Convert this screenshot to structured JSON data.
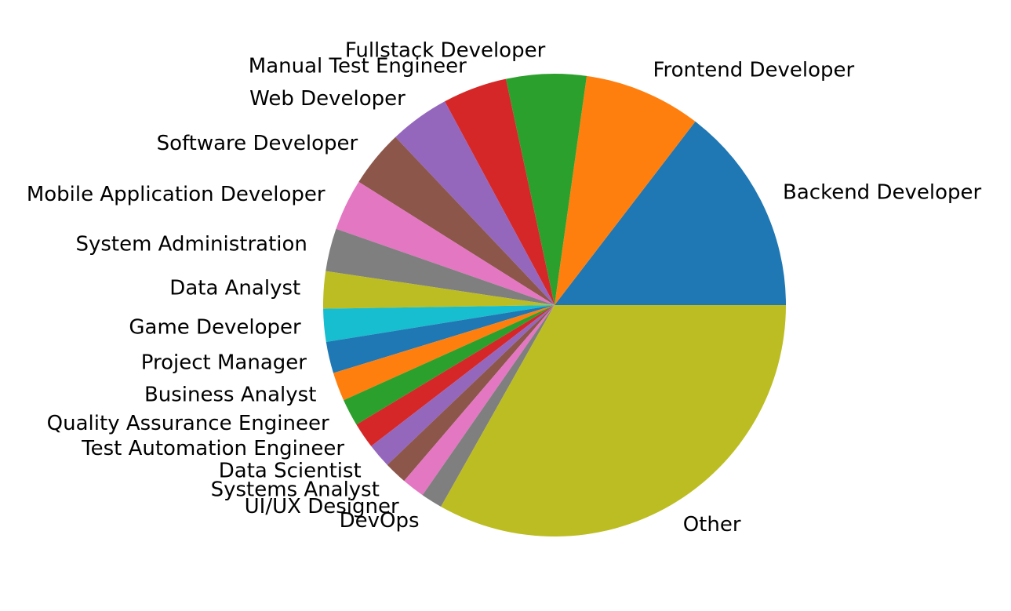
{
  "chart_data": {
    "type": "pie",
    "title": "",
    "start_angle_deg": 0,
    "direction": "counterclockwise",
    "slices": [
      {
        "label": "Backend Developer",
        "value": 14.6,
        "color": "#1f77b4"
      },
      {
        "label": "Frontend Developer",
        "value": 8.2,
        "color": "#ff7f0e"
      },
      {
        "label": "Fullstack Developer",
        "value": 5.6,
        "color": "#2ca02c"
      },
      {
        "label": "Manual Test Engineer",
        "value": 4.5,
        "color": "#d62728"
      },
      {
        "label": "Web Developer",
        "value": 4.2,
        "color": "#9467bd"
      },
      {
        "label": "Software Developer",
        "value": 4.0,
        "color": "#8c564b"
      },
      {
        "label": "Mobile Application Developer",
        "value": 3.6,
        "color": "#e377c2"
      },
      {
        "label": "System Administration",
        "value": 3.0,
        "color": "#7f7f7f"
      },
      {
        "label": "Data Analyst",
        "value": 2.6,
        "color": "#bcbd22"
      },
      {
        "label": "Game Developer",
        "value": 2.3,
        "color": "#17becf"
      },
      {
        "label": "Project Manager",
        "value": 2.2,
        "color": "#1f77b4"
      },
      {
        "label": "Business Analyst",
        "value": 2.0,
        "color": "#ff7f0e"
      },
      {
        "label": "Quality Assurance Engineer",
        "value": 1.9,
        "color": "#2ca02c"
      },
      {
        "label": "Test Automation Engineer",
        "value": 1.8,
        "color": "#d62728"
      },
      {
        "label": "Data Scientist",
        "value": 1.7,
        "color": "#9467bd"
      },
      {
        "label": "Systems Analyst",
        "value": 1.6,
        "color": "#8c564b"
      },
      {
        "label": "UI/UX Designer",
        "value": 1.6,
        "color": "#e377c2"
      },
      {
        "label": "DevOps",
        "value": 1.5,
        "color": "#7f7f7f"
      },
      {
        "label": "Other",
        "value": 33.2,
        "color": "#bcbd22"
      }
    ]
  }
}
